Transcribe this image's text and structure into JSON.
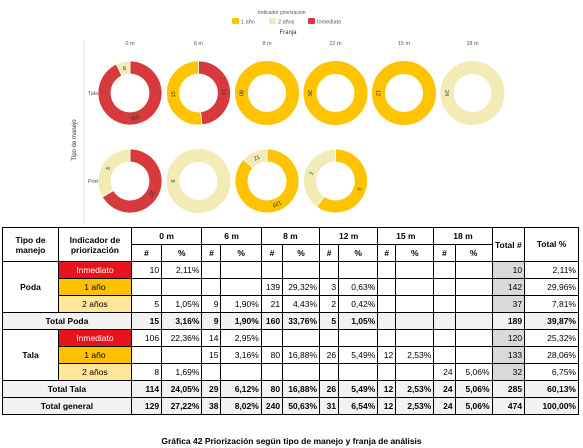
{
  "chart_data": {
    "type": "donut-grid",
    "legend_title": "Indicador priorizacion",
    "legend": [
      {
        "name": "1 año",
        "color": "#ffc300"
      },
      {
        "name": "2 años",
        "color": "#f3ebb5"
      },
      {
        "name": "Inmediato",
        "color": "#d73a3d"
      }
    ],
    "column_title": "Franja",
    "row_title": "Tipo de manejo",
    "columns": [
      "0 m",
      "6 m",
      "8 m",
      "12 m",
      "15 m",
      "18 m"
    ],
    "rows": [
      {
        "name": "Tala",
        "cells": [
          {
            "inmediato": 106,
            "un_ano": 0,
            "dos_anos": 8,
            "labels": [
              "106",
              "8"
            ]
          },
          {
            "inmediato": 14,
            "un_ano": 15,
            "dos_anos": 0,
            "labels": [
              "14",
              "15"
            ]
          },
          {
            "inmediato": 0,
            "un_ano": 80,
            "dos_anos": 0,
            "labels": [
              "80"
            ]
          },
          {
            "inmediato": 0,
            "un_ano": 26,
            "dos_anos": 0,
            "labels": [
              "26"
            ]
          },
          {
            "inmediato": 0,
            "un_ano": 12,
            "dos_anos": 0,
            "labels": [
              "12"
            ]
          },
          {
            "inmediato": 0,
            "un_ano": 0,
            "dos_anos": 24,
            "labels": [
              "24"
            ]
          }
        ]
      },
      {
        "name": "Poda",
        "cells": [
          {
            "inmediato": 10,
            "un_ano": 0,
            "dos_anos": 5,
            "labels": [
              "10",
              "5"
            ]
          },
          {
            "inmediato": 0,
            "un_ano": 0,
            "dos_anos": 9,
            "labels": [
              "9"
            ]
          },
          {
            "inmediato": 0,
            "un_ano": 139,
            "dos_anos": 21,
            "labels": [
              "139",
              "21"
            ]
          },
          {
            "inmediato": 0,
            "un_ano": 3,
            "dos_anos": 2,
            "labels": [
              "3",
              "2"
            ]
          },
          null,
          null
        ]
      }
    ]
  },
  "table": {
    "h_tipo": "Tipo de manejo",
    "h_indicador": "Indicador de priorización",
    "h_franjas": [
      "0 m",
      "6 m",
      "8 m",
      "12 m",
      "15 m",
      "18 m"
    ],
    "h_total_n": "Total #",
    "h_total_pct": "Total %",
    "h_n": "#",
    "h_pct": "%",
    "groups": [
      {
        "name": "Poda",
        "rows": [
          {
            "ind": "Inmediato",
            "cls": "ind-red",
            "vals": [
              "10",
              "2,11%",
              "",
              "",
              "",
              "",
              "",
              "",
              "",
              "",
              "",
              ""
            ],
            "tn": "10",
            "tp": "2,11%"
          },
          {
            "ind": "1 año",
            "cls": "ind-yel",
            "vals": [
              "",
              "",
              "",
              "",
              "139",
              "29,32%",
              "3",
              "0,63%",
              "",
              "",
              "",
              ""
            ],
            "tn": "142",
            "tp": "29,96%"
          },
          {
            "ind": "2 años",
            "cls": "ind-lyel",
            "vals": [
              "5",
              "1,05%",
              "9",
              "1,90%",
              "21",
              "4,43%",
              "2",
              "0,42%",
              "",
              "",
              "",
              ""
            ],
            "tn": "37",
            "tp": "7,81%"
          }
        ],
        "total_label": "Total Poda",
        "total_vals": [
          "15",
          "3,16%",
          "9",
          "1,90%",
          "160",
          "33,76%",
          "5",
          "1,05%",
          "",
          "",
          "",
          ""
        ],
        "total_tn": "189",
        "total_tp": "39,87%"
      },
      {
        "name": "Tala",
        "rows": [
          {
            "ind": "Inmediato",
            "cls": "ind-red",
            "vals": [
              "106",
              "22,36%",
              "14",
              "2,95%",
              "",
              "",
              "",
              "",
              "",
              "",
              "",
              ""
            ],
            "tn": "120",
            "tp": "25,32%"
          },
          {
            "ind": "1 año",
            "cls": "ind-yel",
            "vals": [
              "",
              "",
              "15",
              "3,16%",
              "80",
              "16,88%",
              "26",
              "5,49%",
              "12",
              "2,53%",
              "",
              ""
            ],
            "tn": "133",
            "tp": "28,06%"
          },
          {
            "ind": "2 años",
            "cls": "ind-lyel",
            "vals": [
              "8",
              "1,69%",
              "",
              "",
              "",
              "",
              "",
              "",
              "",
              "",
              "24",
              "5,06%"
            ],
            "tn": "32",
            "tp": "6,75%"
          }
        ],
        "total_label": "Total Tala",
        "total_vals": [
          "114",
          "24,05%",
          "29",
          "6,12%",
          "80",
          "16,88%",
          "26",
          "5,49%",
          "12",
          "2,53%",
          "24",
          "5,06%"
        ],
        "total_tn": "285",
        "total_tp": "60,13%"
      }
    ],
    "grand_label": "Total general",
    "grand_vals": [
      "129",
      "27,22%",
      "38",
      "8,02%",
      "240",
      "50,63%",
      "31",
      "6,54%",
      "12",
      "2,53%",
      "24",
      "5,06%"
    ],
    "grand_tn": "474",
    "grand_tp": "100,00%"
  },
  "caption": "Gráfica 42 Priorización según tipo de manejo y franja de análisis"
}
